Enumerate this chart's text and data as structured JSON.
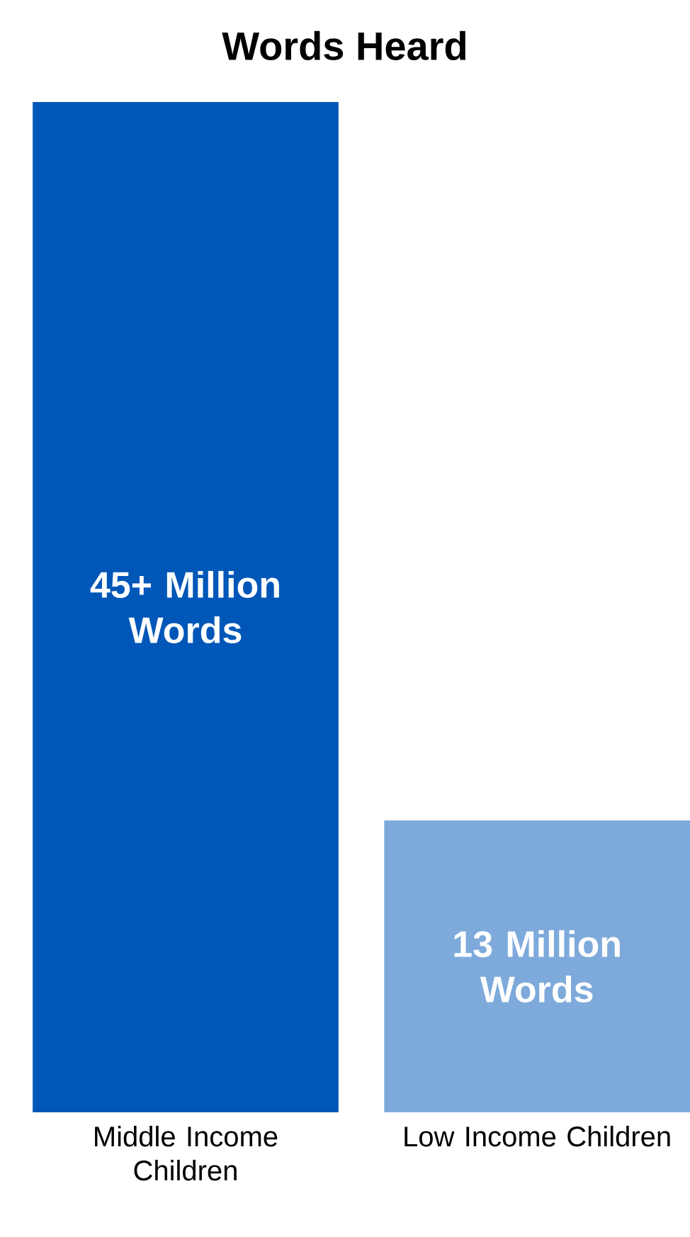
{
  "chart_data": {
    "type": "bar",
    "title": "Words Heard",
    "categories": [
      "Middle Income Children",
      "Low Income Children"
    ],
    "values": [
      45,
      13
    ],
    "colors": [
      "#0057b8",
      "#7eaadb"
    ],
    "value_labels": [
      "45+ Million Words",
      "13 Million Words"
    ]
  }
}
